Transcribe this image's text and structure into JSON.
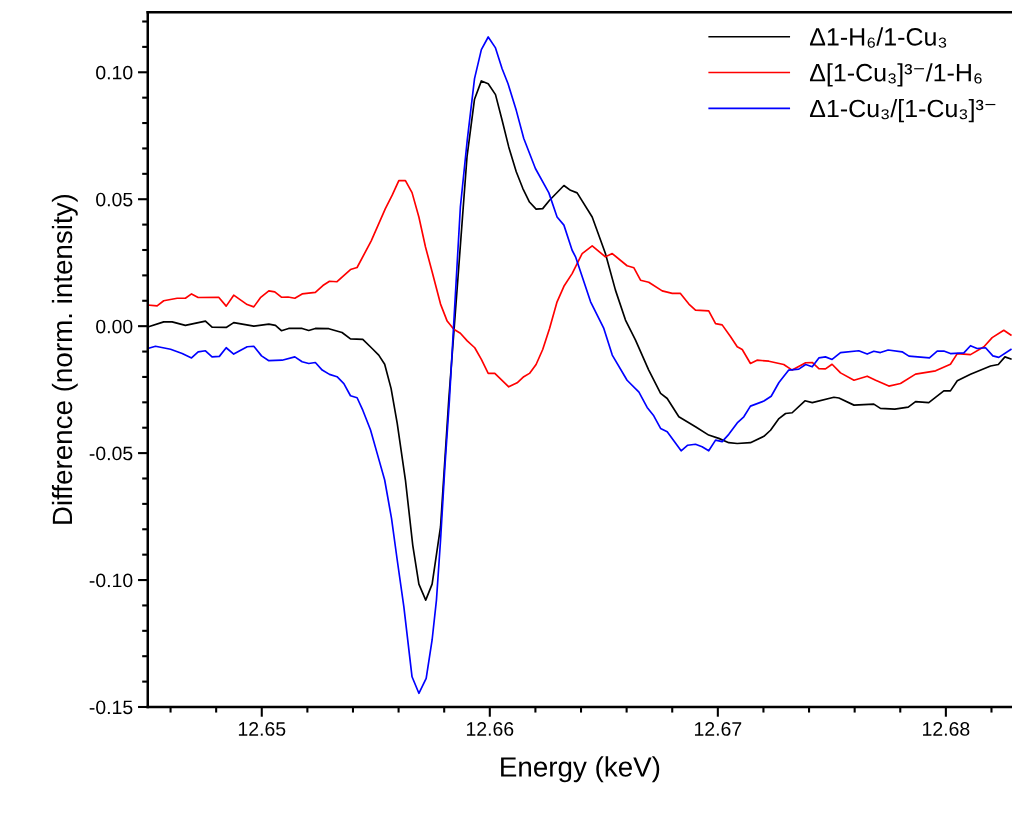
{
  "chart_data": {
    "type": "line",
    "xlabel": "Energy (keV)",
    "ylabel": "Difference (norm. intensity)",
    "xlim": [
      12.645,
      12.6829
    ],
    "ylim": [
      -0.15,
      0.1236
    ],
    "xticks": [
      {
        "value": 12.646,
        "label": null
      },
      {
        "value": 12.648,
        "label": null
      },
      12.65,
      {
        "value": 12.652,
        "label": null
      },
      {
        "value": 12.654,
        "label": null
      },
      {
        "value": 12.656,
        "label": null
      },
      {
        "value": 12.658,
        "label": null
      },
      12.66,
      {
        "value": 12.662,
        "label": null
      },
      {
        "value": 12.664,
        "label": null
      },
      {
        "value": 12.666,
        "label": null
      },
      {
        "value": 12.668,
        "label": null
      },
      12.67,
      {
        "value": 12.672,
        "label": null
      },
      {
        "value": 12.674,
        "label": null
      },
      {
        "value": 12.676,
        "label": null
      },
      {
        "value": 12.678,
        "label": null
      },
      12.68,
      {
        "value": 12.682,
        "label": null
      }
    ],
    "yticks": [
      {
        "value": -0.15,
        "label": "-0.15"
      },
      {
        "value": -0.14,
        "label": null
      },
      {
        "value": -0.13,
        "label": null
      },
      {
        "value": -0.12,
        "label": null
      },
      {
        "value": -0.11,
        "label": null
      },
      {
        "value": -0.1,
        "label": "-0.10"
      },
      {
        "value": -0.09,
        "label": null
      },
      {
        "value": -0.08,
        "label": null
      },
      {
        "value": -0.07,
        "label": null
      },
      {
        "value": -0.06,
        "label": null
      },
      {
        "value": -0.05,
        "label": "-0.05"
      },
      {
        "value": -0.04,
        "label": null
      },
      {
        "value": -0.03,
        "label": null
      },
      {
        "value": -0.02,
        "label": null
      },
      {
        "value": -0.01,
        "label": null
      },
      {
        "value": 0,
        "label": "0.00"
      },
      {
        "value": 0.01,
        "label": null
      },
      {
        "value": 0.02,
        "label": null
      },
      {
        "value": 0.03,
        "label": null
      },
      {
        "value": 0.04,
        "label": null
      },
      {
        "value": 0.05,
        "label": "0.05"
      },
      {
        "value": 0.06,
        "label": null
      },
      {
        "value": 0.07,
        "label": null
      },
      {
        "value": 0.08,
        "label": null
      },
      {
        "value": 0.09,
        "label": null
      },
      {
        "value": 0.1,
        "label": "0.10"
      },
      {
        "value": 0.11,
        "label": null
      },
      {
        "value": 0.12,
        "label": null
      }
    ],
    "grid": false,
    "legend": "top right",
    "marker": "none",
    "line_style": "solid",
    "series": [
      {
        "name": "Δ1-H₆/1-Cu₃",
        "color": "#000000",
        "x": [
          12.645,
          12.6457,
          12.64607,
          12.64665,
          12.64753,
          12.64782,
          12.64844,
          12.64877,
          12.64965,
          12.65031,
          12.6506,
          12.65086,
          12.65118,
          12.65177,
          12.65206,
          12.65235,
          12.65294,
          12.65352,
          12.65389,
          12.65443,
          12.65484,
          12.65513,
          12.65539,
          12.65567,
          12.65594,
          12.6563,
          12.65662,
          12.65689,
          12.65719,
          12.65747,
          12.65784,
          12.6582,
          12.65864,
          12.659,
          12.65933,
          12.65963,
          12.65993,
          12.66025,
          12.66054,
          12.66083,
          12.66116,
          12.66145,
          12.66174,
          12.66203,
          12.66232,
          12.66262,
          12.66325,
          12.66354,
          12.66383,
          12.66449,
          12.66507,
          12.66551,
          12.66595,
          12.66639,
          12.66697,
          12.66749,
          12.66778,
          12.66829,
          12.66902,
          12.6696,
          12.67004,
          12.67048,
          12.67085,
          12.67143,
          12.67202,
          12.67231,
          12.67268,
          12.67297,
          12.67326,
          12.67382,
          12.67414,
          12.67509,
          12.67531,
          12.67597,
          12.67684,
          12.67713,
          12.67776,
          12.67835,
          12.67867,
          12.67925,
          12.67991,
          12.6802,
          12.6805,
          12.68108,
          12.68196,
          12.6823,
          12.68259,
          12.68285
        ],
        "values": [
          -0.0003,
          0.0017,
          0.0017,
          0.0003,
          0.002,
          -0.0004,
          -0.0005,
          0.0014,
          0.0,
          0.0008,
          0.0003,
          -0.0018,
          -0.0009,
          -0.0009,
          -0.0017,
          -0.0009,
          -0.001,
          -0.0025,
          -0.005,
          -0.0052,
          -0.0088,
          -0.0114,
          -0.015,
          -0.0245,
          -0.0383,
          -0.0606,
          -0.0862,
          -0.1016,
          -0.1079,
          -0.1016,
          -0.079,
          -0.0291,
          0.0234,
          0.0667,
          0.0894,
          0.0966,
          0.0955,
          0.0912,
          0.0811,
          0.0706,
          0.0608,
          0.0542,
          0.0489,
          0.0461,
          0.0463,
          0.0496,
          0.0554,
          0.0535,
          0.0525,
          0.043,
          0.0286,
          0.0142,
          0.0024,
          -0.0055,
          -0.0173,
          -0.0265,
          -0.0285,
          -0.0357,
          -0.0396,
          -0.0429,
          -0.0442,
          -0.0459,
          -0.0462,
          -0.0459,
          -0.0434,
          -0.041,
          -0.0364,
          -0.0344,
          -0.0341,
          -0.0294,
          -0.0301,
          -0.028,
          -0.0283,
          -0.0311,
          -0.0307,
          -0.0324,
          -0.0327,
          -0.0319,
          -0.0297,
          -0.0301,
          -0.0255,
          -0.0255,
          -0.0215,
          -0.0189,
          -0.0157,
          -0.0151,
          -0.0121,
          -0.0129
        ]
      },
      {
        "name": "Δ[1-Cu₃]³⁻/1-H₆",
        "color": "#ff0000",
        "x": [
          12.645,
          12.64541,
          12.6457,
          12.64629,
          12.64665,
          12.64692,
          12.64721,
          12.64811,
          12.64844,
          12.64877,
          12.64936,
          12.64965,
          12.64994,
          12.65031,
          12.65057,
          12.65086,
          12.65115,
          12.65145,
          12.65177,
          12.65235,
          12.65268,
          12.65297,
          12.6533,
          12.65389,
          12.65418,
          12.6548,
          12.65542,
          12.65572,
          12.65601,
          12.6563,
          12.65659,
          12.65689,
          12.65718,
          12.65747,
          12.65784,
          12.65813,
          12.65842,
          12.65871,
          12.65901,
          12.65934,
          12.65963,
          12.65993,
          12.66022,
          12.66083,
          12.6612,
          12.66149,
          12.66174,
          12.66203,
          12.66232,
          12.66262,
          12.66295,
          12.66325,
          12.66361,
          12.66405,
          12.66449,
          12.66507,
          12.66537,
          12.66602,
          12.66632,
          12.66661,
          12.66697,
          12.66756,
          12.668,
          12.66836,
          12.66873,
          12.66902,
          12.6696,
          12.6699,
          12.67019,
          12.67056,
          12.67085,
          12.67107,
          12.67143,
          12.67172,
          12.67224,
          12.67289,
          12.67326,
          12.67385,
          12.67414,
          12.67443,
          12.67472,
          12.67501,
          12.67538,
          12.67597,
          12.67655,
          12.67692,
          12.6775,
          12.67801,
          12.67867,
          12.67955,
          12.6802,
          12.6805,
          12.68108,
          12.68167,
          12.68203,
          12.68254,
          12.68285
        ],
        "values": [
          0.0083,
          0.008,
          0.01,
          0.011,
          0.011,
          0.0127,
          0.0113,
          0.0114,
          0.0079,
          0.0122,
          0.0085,
          0.0076,
          0.0112,
          0.0139,
          0.0135,
          0.0114,
          0.0115,
          0.011,
          0.0127,
          0.0133,
          0.016,
          0.0177,
          0.0175,
          0.0223,
          0.0231,
          0.0336,
          0.0463,
          0.0516,
          0.0573,
          0.0573,
          0.0526,
          0.043,
          0.0312,
          0.0214,
          0.0087,
          0.002,
          -0.0012,
          -0.0028,
          -0.0058,
          -0.0085,
          -0.0131,
          -0.0186,
          -0.0186,
          -0.0239,
          -0.0223,
          -0.0199,
          -0.0186,
          -0.0151,
          -0.0092,
          -0.0009,
          0.0096,
          0.0157,
          0.0207,
          0.0286,
          0.0316,
          0.0273,
          0.0286,
          0.0238,
          0.023,
          0.0181,
          0.0173,
          0.0139,
          0.0129,
          0.0129,
          0.0087,
          0.0063,
          0.006,
          0.001,
          0.0005,
          -0.0042,
          -0.0081,
          -0.0092,
          -0.0147,
          -0.0134,
          -0.0138,
          -0.0151,
          -0.0173,
          -0.0144,
          -0.0143,
          -0.0167,
          -0.0168,
          -0.015,
          -0.0184,
          -0.0213,
          -0.0197,
          -0.0213,
          -0.0236,
          -0.0226,
          -0.0189,
          -0.0176,
          -0.015,
          -0.0108,
          -0.0112,
          -0.0081,
          -0.0045,
          -0.0016,
          -0.0035
        ]
      },
      {
        "name": "Δ1-Cu₃/[1-Cu₃]³⁻",
        "color": "#0000ff",
        "x": [
          12.645,
          12.64534,
          12.646,
          12.64651,
          12.64692,
          12.64721,
          12.64753,
          12.64782,
          12.64814,
          12.64844,
          12.64877,
          12.64936,
          12.64965,
          12.64999,
          12.65031,
          12.65089,
          12.65145,
          12.65177,
          12.65206,
          12.65235,
          12.65265,
          12.65297,
          12.6533,
          12.6536,
          12.65389,
          12.65418,
          12.65443,
          12.65477,
          12.65506,
          12.65539,
          12.65569,
          12.65594,
          12.65623,
          12.65659,
          12.65689,
          12.65721,
          12.65747,
          12.65766,
          12.65784,
          12.65803,
          12.65823,
          12.65841,
          12.65871,
          12.65901,
          12.65933,
          12.65963,
          12.65993,
          12.66025,
          12.66054,
          12.6608,
          12.66116,
          12.66149,
          12.662,
          12.66259,
          12.66295,
          12.66325,
          12.66361,
          12.66376,
          12.66442,
          12.665,
          12.66537,
          12.66602,
          12.66654,
          12.6669,
          12.66719,
          12.66749,
          12.66778,
          12.66839,
          12.66868,
          12.66902,
          12.66931,
          12.6696,
          12.6699,
          12.67019,
          12.67048,
          12.67085,
          12.67114,
          12.67143,
          12.67202,
          12.67234,
          12.67268,
          12.67311,
          12.67355,
          12.67385,
          12.67414,
          12.67443,
          12.67472,
          12.67501,
          12.67538,
          12.67618,
          12.67655,
          12.67684,
          12.67713,
          12.67747,
          12.67808,
          12.67838,
          12.67928,
          12.67962,
          12.67991,
          12.6802,
          12.68079,
          12.68108,
          12.68137,
          12.68174,
          12.68206,
          12.68232,
          12.68285
        ],
        "values": [
          -0.0088,
          -0.0079,
          -0.0091,
          -0.0108,
          -0.0125,
          -0.0101,
          -0.0097,
          -0.0121,
          -0.0119,
          -0.0085,
          -0.011,
          -0.0081,
          -0.0079,
          -0.0117,
          -0.0136,
          -0.0134,
          -0.0121,
          -0.014,
          -0.0147,
          -0.0143,
          -0.0173,
          -0.019,
          -0.0199,
          -0.0226,
          -0.0274,
          -0.0282,
          -0.0331,
          -0.0409,
          -0.0501,
          -0.0606,
          -0.0757,
          -0.0921,
          -0.1105,
          -0.1381,
          -0.1446,
          -0.1387,
          -0.1236,
          -0.1079,
          -0.0843,
          -0.0554,
          -0.0291,
          -0.0003,
          0.047,
          0.0732,
          0.0975,
          0.1089,
          0.1139,
          0.1096,
          0.1014,
          0.0955,
          0.085,
          0.0739,
          0.0621,
          0.0525,
          0.043,
          0.0398,
          0.0299,
          0.0273,
          0.0096,
          -0.0009,
          -0.0114,
          -0.0213,
          -0.026,
          -0.032,
          -0.0353,
          -0.0403,
          -0.0416,
          -0.0491,
          -0.0469,
          -0.0465,
          -0.0475,
          -0.0491,
          -0.0449,
          -0.0455,
          -0.0426,
          -0.0381,
          -0.0357,
          -0.0315,
          -0.0295,
          -0.0276,
          -0.0222,
          -0.0173,
          -0.0169,
          -0.0151,
          -0.016,
          -0.0125,
          -0.0121,
          -0.0131,
          -0.0104,
          -0.0097,
          -0.011,
          -0.0099,
          -0.0104,
          -0.0094,
          -0.0101,
          -0.0118,
          -0.0125,
          -0.0098,
          -0.0098,
          -0.0108,
          -0.0105,
          -0.0077,
          -0.0088,
          -0.0085,
          -0.0117,
          -0.0123,
          -0.0092
        ]
      }
    ]
  }
}
